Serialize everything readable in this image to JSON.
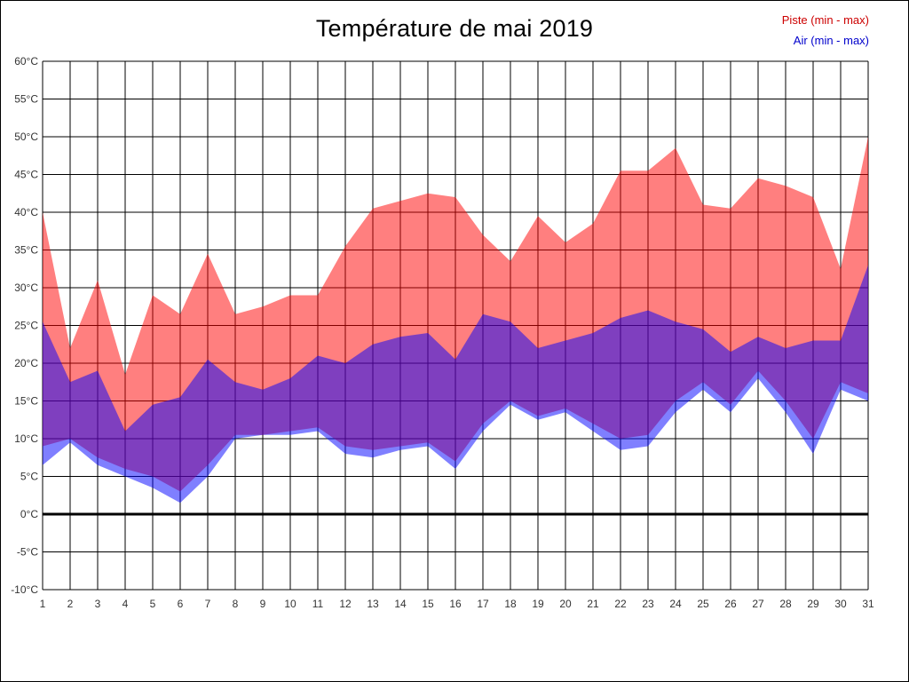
{
  "title": "Température de mai 2019",
  "legend": {
    "piste": {
      "label": "Piste (min - max)",
      "color": "#cc0000"
    },
    "air": {
      "label": "Air (min - max)",
      "color": "#0000cc"
    }
  },
  "chart_data": {
    "type": "area",
    "title": "Température de mai 2019",
    "x": [
      1,
      2,
      3,
      4,
      5,
      6,
      7,
      8,
      9,
      10,
      11,
      12,
      13,
      14,
      15,
      16,
      17,
      18,
      19,
      20,
      21,
      22,
      23,
      24,
      25,
      26,
      27,
      28,
      29,
      30,
      31
    ],
    "ylim": [
      -10,
      60
    ],
    "ytick_step": 5,
    "ytick_suffix": "°C",
    "grid": true,
    "grid_color": "#000000",
    "zero_line_at": 0,
    "zero_line_color": "#000000",
    "legend_position": "top-right",
    "series": [
      {
        "name": "Piste (min - max)",
        "fill": "rgba(255,0,0,0.5)",
        "max": [
          40,
          22,
          31,
          18.5,
          29,
          26.5,
          34.5,
          26.5,
          27.5,
          29,
          29,
          35.5,
          40.5,
          41.5,
          42.5,
          42,
          37,
          33.5,
          39.5,
          36,
          38.5,
          45.5,
          45.5,
          48.5,
          41,
          40.5,
          44.5,
          43.5,
          42,
          32.5,
          50
        ],
        "min": [
          9,
          10,
          7.5,
          6,
          5,
          3,
          6.5,
          10.5,
          10.5,
          11,
          11.5,
          9,
          8.5,
          9,
          9.5,
          7,
          12,
          15,
          13,
          14,
          12,
          10,
          10.5,
          15,
          17.5,
          14.5,
          19,
          15,
          10,
          17.5,
          16
        ]
      },
      {
        "name": "Air (min - max)",
        "fill": "rgba(0,0,255,0.5)",
        "max": [
          25.5,
          17.5,
          19,
          11,
          14.5,
          15.5,
          20.5,
          17.5,
          16.5,
          18,
          21,
          20,
          22.5,
          23.5,
          24,
          20.5,
          26.5,
          25.5,
          22,
          23,
          24,
          26,
          27,
          25.5,
          24.5,
          21.5,
          23.5,
          22,
          23,
          23,
          33
        ],
        "min": [
          6.5,
          9.5,
          6.5,
          5,
          3.5,
          1.5,
          5,
          10,
          10.5,
          10.5,
          11,
          8,
          7.5,
          8.5,
          9,
          6,
          11,
          14.5,
          12.5,
          13.5,
          11,
          8.5,
          9,
          13.5,
          16.5,
          13.5,
          18,
          13.5,
          8,
          16.5,
          15
        ]
      }
    ]
  }
}
